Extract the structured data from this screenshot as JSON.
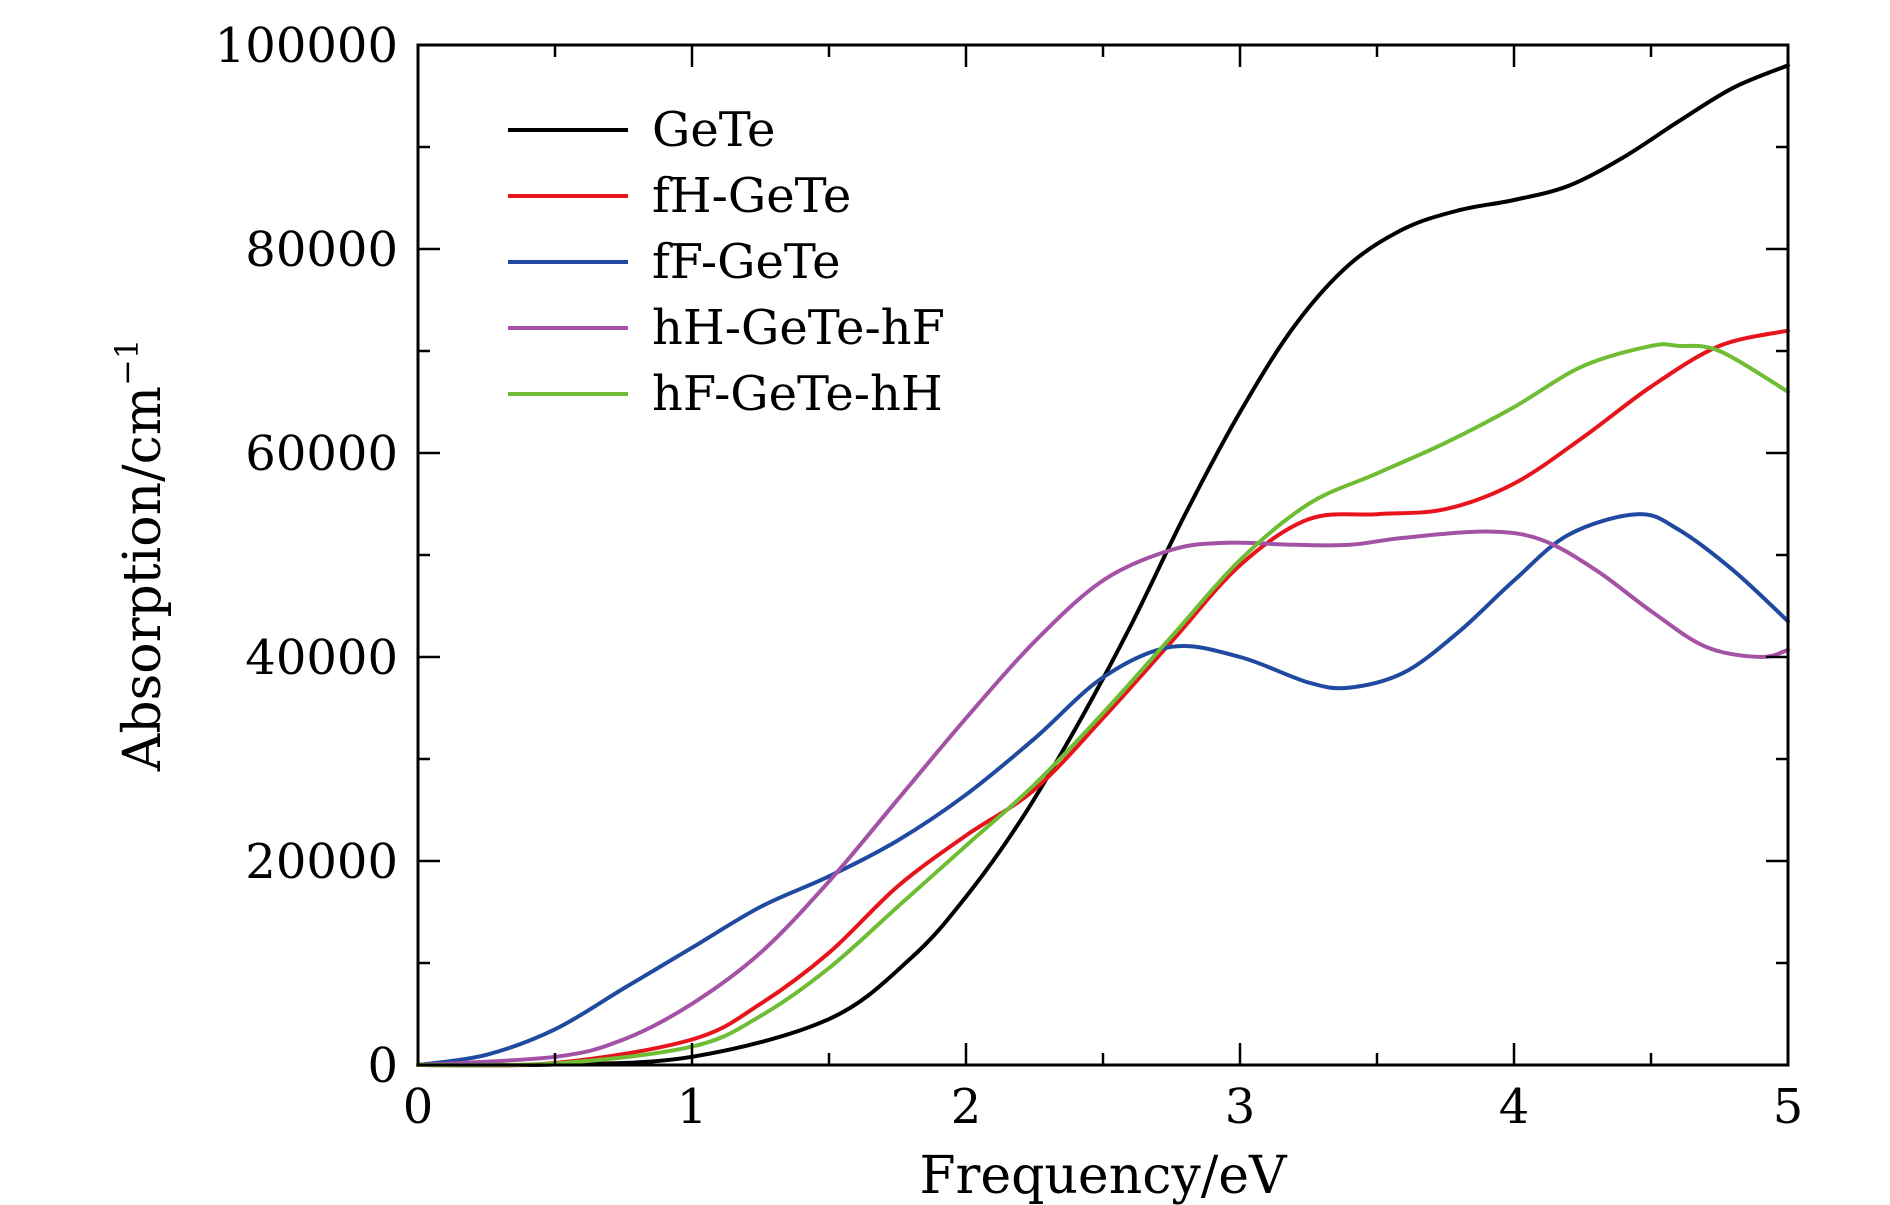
{
  "chart_data": {
    "type": "line",
    "title": "",
    "xlabel": "Frequency/eV",
    "ylabel": "Absorption/cm",
    "ylabel_superscript": "−1",
    "xlim": [
      0,
      5
    ],
    "ylim": [
      0,
      100000
    ],
    "x_ticks": [
      "0",
      "1",
      "2",
      "3",
      "4",
      "5"
    ],
    "y_ticks": [
      "0",
      "20000",
      "40000",
      "60000",
      "80000",
      "100000"
    ],
    "legend_position": "top-left",
    "grid": false,
    "series": [
      {
        "name": "GeTe",
        "color": "#000000",
        "x": [
          0,
          0.5,
          1.0,
          1.5,
          1.8,
          2.0,
          2.2,
          2.4,
          2.6,
          2.8,
          3.0,
          3.2,
          3.4,
          3.6,
          3.8,
          4.0,
          4.2,
          4.4,
          4.6,
          4.8,
          5.0
        ],
        "y": [
          0,
          50,
          800,
          4500,
          10500,
          16500,
          24000,
          33000,
          43000,
          54000,
          64000,
          72500,
          78500,
          82000,
          83800,
          84800,
          86200,
          89000,
          92500,
          95800,
          98000
        ]
      },
      {
        "name": "fH-GeTe",
        "color": "#e8141c",
        "x": [
          0,
          0.5,
          1.0,
          1.25,
          1.5,
          1.75,
          2.0,
          2.25,
          2.5,
          2.75,
          3.0,
          3.25,
          3.5,
          3.75,
          4.0,
          4.25,
          4.5,
          4.75,
          5.0
        ],
        "y": [
          0,
          200,
          2500,
          6000,
          11000,
          17500,
          22500,
          27000,
          34000,
          41500,
          49000,
          53500,
          54000,
          54500,
          57000,
          61500,
          66500,
          70500,
          72000
        ]
      },
      {
        "name": "fF-GeTe",
        "color": "#1f4aa0",
        "x": [
          0,
          0.25,
          0.5,
          0.75,
          1.0,
          1.25,
          1.5,
          1.75,
          2.0,
          2.25,
          2.5,
          2.75,
          3.0,
          3.25,
          3.4,
          3.6,
          3.8,
          4.0,
          4.2,
          4.45,
          4.6,
          4.8,
          5.0
        ],
        "y": [
          0,
          1000,
          3500,
          7500,
          11500,
          15500,
          18500,
          22000,
          26500,
          32000,
          38000,
          41000,
          40000,
          37500,
          37000,
          38500,
          42500,
          47500,
          52000,
          54000,
          52500,
          48500,
          43500
        ]
      },
      {
        "name": "hH-GeTe-hF",
        "color": "#a352a5",
        "x": [
          0,
          0.5,
          0.75,
          1.0,
          1.25,
          1.5,
          1.75,
          2.0,
          2.25,
          2.5,
          2.75,
          2.95,
          3.2,
          3.4,
          3.6,
          3.9,
          4.1,
          4.3,
          4.5,
          4.7,
          4.9,
          5.0
        ],
        "y": [
          0,
          800,
          2500,
          6000,
          11000,
          18000,
          26000,
          34000,
          41500,
          47500,
          50500,
          51200,
          51000,
          51000,
          51700,
          52300,
          51500,
          48500,
          44500,
          41000,
          40000,
          40700
        ]
      },
      {
        "name": "hF-GeTe-hH",
        "color": "#6fbd35",
        "x": [
          0,
          0.5,
          1.0,
          1.25,
          1.5,
          1.75,
          2.0,
          2.25,
          2.5,
          2.75,
          3.0,
          3.25,
          3.5,
          3.75,
          4.0,
          4.25,
          4.5,
          4.6,
          4.75,
          5.0
        ],
        "y": [
          0,
          150,
          1800,
          4800,
          9500,
          15500,
          21500,
          27500,
          34500,
          42000,
          49500,
          55000,
          58000,
          61000,
          64500,
          68500,
          70500,
          70500,
          70000,
          66000
        ]
      }
    ]
  }
}
